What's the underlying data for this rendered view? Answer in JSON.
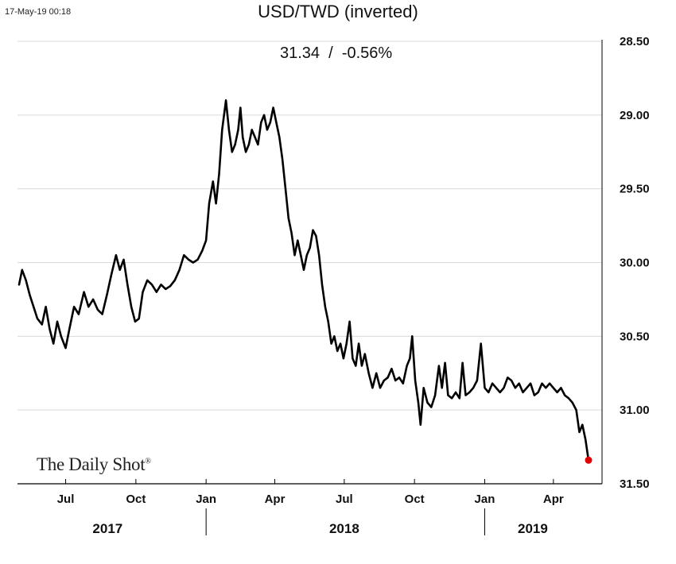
{
  "header": {
    "timestamp": "17-May-19 00:18",
    "title": "USD/TWD (inverted)",
    "subtitle": "31.34  /  -0.56%"
  },
  "logo": {
    "text": "The Daily Shot",
    "mark": "®"
  },
  "chart_data": {
    "type": "line",
    "title": "USD/TWD (inverted)",
    "subtitle": "31.34  /  -0.56%",
    "xlabel": "",
    "ylabel": "",
    "y_inverted": true,
    "ylim": [
      28.5,
      31.5
    ],
    "yticks": [
      "28.50",
      "29.00",
      "29.50",
      "30.00",
      "30.50",
      "31.00",
      "31.50"
    ],
    "y_axis_side": "right",
    "grid": "horizontal",
    "x_range": [
      "2017-05-01",
      "2019-05-17"
    ],
    "xticks": [
      {
        "date": "2017-07-01",
        "label": "Jul"
      },
      {
        "date": "2017-10-01",
        "label": "Oct"
      },
      {
        "date": "2018-01-01",
        "label": "Jan"
      },
      {
        "date": "2018-04-01",
        "label": "Apr"
      },
      {
        "date": "2018-07-01",
        "label": "Jul"
      },
      {
        "date": "2018-10-01",
        "label": "Oct"
      },
      {
        "date": "2019-01-01",
        "label": "Jan"
      },
      {
        "date": "2019-04-01",
        "label": "Apr"
      }
    ],
    "years": [
      {
        "label": "2017",
        "center": "2017-08-25"
      },
      {
        "label": "2018",
        "center": "2018-07-01"
      },
      {
        "label": "2019",
        "center": "2019-03-05"
      }
    ],
    "year_separators": [
      "2018-01-01",
      "2019-01-01"
    ],
    "series": [
      {
        "color": "#000000",
        "points": [
          [
            "2017-05-01",
            30.15
          ],
          [
            "2017-05-05",
            30.05
          ],
          [
            "2017-05-10",
            30.12
          ],
          [
            "2017-05-15",
            30.22
          ],
          [
            "2017-05-20",
            30.3
          ],
          [
            "2017-05-25",
            30.38
          ],
          [
            "2017-05-31",
            30.42
          ],
          [
            "2017-06-05",
            30.3
          ],
          [
            "2017-06-10",
            30.45
          ],
          [
            "2017-06-15",
            30.55
          ],
          [
            "2017-06-20",
            30.4
          ],
          [
            "2017-06-25",
            30.5
          ],
          [
            "2017-07-01",
            30.58
          ],
          [
            "2017-07-06",
            30.45
          ],
          [
            "2017-07-12",
            30.3
          ],
          [
            "2017-07-18",
            30.35
          ],
          [
            "2017-07-25",
            30.2
          ],
          [
            "2017-07-31",
            30.3
          ],
          [
            "2017-08-06",
            30.25
          ],
          [
            "2017-08-12",
            30.32
          ],
          [
            "2017-08-18",
            30.35
          ],
          [
            "2017-08-24",
            30.22
          ],
          [
            "2017-08-30",
            30.08
          ],
          [
            "2017-09-05",
            29.95
          ],
          [
            "2017-09-10",
            30.05
          ],
          [
            "2017-09-15",
            29.98
          ],
          [
            "2017-09-20",
            30.15
          ],
          [
            "2017-09-25",
            30.3
          ],
          [
            "2017-09-30",
            30.4
          ],
          [
            "2017-10-05",
            30.38
          ],
          [
            "2017-10-10",
            30.2
          ],
          [
            "2017-10-16",
            30.12
          ],
          [
            "2017-10-22",
            30.15
          ],
          [
            "2017-10-28",
            30.2
          ],
          [
            "2017-11-03",
            30.15
          ],
          [
            "2017-11-09",
            30.18
          ],
          [
            "2017-11-15",
            30.16
          ],
          [
            "2017-11-21",
            30.12
          ],
          [
            "2017-11-27",
            30.05
          ],
          [
            "2017-12-03",
            29.95
          ],
          [
            "2017-12-09",
            29.98
          ],
          [
            "2017-12-15",
            30.0
          ],
          [
            "2017-12-21",
            29.98
          ],
          [
            "2017-12-27",
            29.92
          ],
          [
            "2018-01-01",
            29.85
          ],
          [
            "2018-01-05",
            29.6
          ],
          [
            "2018-01-10",
            29.45
          ],
          [
            "2018-01-14",
            29.6
          ],
          [
            "2018-01-18",
            29.4
          ],
          [
            "2018-01-22",
            29.1
          ],
          [
            "2018-01-27",
            28.9
          ],
          [
            "2018-01-31",
            29.1
          ],
          [
            "2018-02-04",
            29.25
          ],
          [
            "2018-02-08",
            29.2
          ],
          [
            "2018-02-12",
            29.1
          ],
          [
            "2018-02-15",
            28.95
          ],
          [
            "2018-02-18",
            29.15
          ],
          [
            "2018-02-22",
            29.25
          ],
          [
            "2018-02-26",
            29.2
          ],
          [
            "2018-03-02",
            29.1
          ],
          [
            "2018-03-06",
            29.15
          ],
          [
            "2018-03-10",
            29.2
          ],
          [
            "2018-03-14",
            29.05
          ],
          [
            "2018-03-18",
            29.0
          ],
          [
            "2018-03-22",
            29.1
          ],
          [
            "2018-03-26",
            29.05
          ],
          [
            "2018-03-30",
            28.95
          ],
          [
            "2018-04-03",
            29.05
          ],
          [
            "2018-04-07",
            29.15
          ],
          [
            "2018-04-11",
            29.3
          ],
          [
            "2018-04-15",
            29.5
          ],
          [
            "2018-04-19",
            29.7
          ],
          [
            "2018-04-23",
            29.8
          ],
          [
            "2018-04-27",
            29.95
          ],
          [
            "2018-05-01",
            29.85
          ],
          [
            "2018-05-05",
            29.95
          ],
          [
            "2018-05-09",
            30.05
          ],
          [
            "2018-05-13",
            29.95
          ],
          [
            "2018-05-17",
            29.9
          ],
          [
            "2018-05-21",
            29.78
          ],
          [
            "2018-05-25",
            29.82
          ],
          [
            "2018-05-29",
            29.95
          ],
          [
            "2018-06-02",
            30.15
          ],
          [
            "2018-06-06",
            30.3
          ],
          [
            "2018-06-10",
            30.4
          ],
          [
            "2018-06-14",
            30.55
          ],
          [
            "2018-06-18",
            30.5
          ],
          [
            "2018-06-22",
            30.6
          ],
          [
            "2018-06-26",
            30.55
          ],
          [
            "2018-06-30",
            30.65
          ],
          [
            "2018-07-04",
            30.55
          ],
          [
            "2018-07-08",
            30.4
          ],
          [
            "2018-07-12",
            30.65
          ],
          [
            "2018-07-16",
            30.7
          ],
          [
            "2018-07-20",
            30.55
          ],
          [
            "2018-07-24",
            30.7
          ],
          [
            "2018-07-28",
            30.62
          ],
          [
            "2018-08-02",
            30.75
          ],
          [
            "2018-08-07",
            30.85
          ],
          [
            "2018-08-12",
            30.75
          ],
          [
            "2018-08-17",
            30.85
          ],
          [
            "2018-08-22",
            30.8
          ],
          [
            "2018-08-27",
            30.78
          ],
          [
            "2018-09-01",
            30.72
          ],
          [
            "2018-09-06",
            30.8
          ],
          [
            "2018-09-11",
            30.78
          ],
          [
            "2018-09-16",
            30.82
          ],
          [
            "2018-09-21",
            30.7
          ],
          [
            "2018-09-25",
            30.65
          ],
          [
            "2018-09-28",
            30.5
          ],
          [
            "2018-10-02",
            30.8
          ],
          [
            "2018-10-06",
            30.95
          ],
          [
            "2018-10-09",
            31.1
          ],
          [
            "2018-10-13",
            30.85
          ],
          [
            "2018-10-18",
            30.95
          ],
          [
            "2018-10-23",
            30.98
          ],
          [
            "2018-10-28",
            30.9
          ],
          [
            "2018-11-02",
            30.7
          ],
          [
            "2018-11-06",
            30.85
          ],
          [
            "2018-11-10",
            30.68
          ],
          [
            "2018-11-14",
            30.9
          ],
          [
            "2018-11-19",
            30.92
          ],
          [
            "2018-11-24",
            30.88
          ],
          [
            "2018-11-29",
            30.92
          ],
          [
            "2018-12-03",
            30.68
          ],
          [
            "2018-12-07",
            30.9
          ],
          [
            "2018-12-12",
            30.88
          ],
          [
            "2018-12-17",
            30.85
          ],
          [
            "2018-12-22",
            30.8
          ],
          [
            "2018-12-27",
            30.55
          ],
          [
            "2019-01-01",
            30.85
          ],
          [
            "2019-01-06",
            30.88
          ],
          [
            "2019-01-11",
            30.82
          ],
          [
            "2019-01-16",
            30.85
          ],
          [
            "2019-01-21",
            30.88
          ],
          [
            "2019-01-26",
            30.85
          ],
          [
            "2019-01-31",
            30.78
          ],
          [
            "2019-02-05",
            30.8
          ],
          [
            "2019-02-10",
            30.85
          ],
          [
            "2019-02-15",
            30.82
          ],
          [
            "2019-02-20",
            30.88
          ],
          [
            "2019-02-25",
            30.85
          ],
          [
            "2019-03-02",
            30.82
          ],
          [
            "2019-03-07",
            30.9
          ],
          [
            "2019-03-12",
            30.88
          ],
          [
            "2019-03-17",
            30.82
          ],
          [
            "2019-03-22",
            30.85
          ],
          [
            "2019-03-27",
            30.82
          ],
          [
            "2019-04-01",
            30.85
          ],
          [
            "2019-04-06",
            30.88
          ],
          [
            "2019-04-11",
            30.85
          ],
          [
            "2019-04-16",
            30.9
          ],
          [
            "2019-04-21",
            30.92
          ],
          [
            "2019-04-26",
            30.95
          ],
          [
            "2019-05-01",
            31.0
          ],
          [
            "2019-05-05",
            31.15
          ],
          [
            "2019-05-09",
            31.1
          ],
          [
            "2019-05-13",
            31.2
          ],
          [
            "2019-05-17",
            31.34
          ]
        ]
      }
    ],
    "last_point": {
      "date": "2019-05-17",
      "value": 31.34,
      "marker_color": "#e00000"
    }
  }
}
